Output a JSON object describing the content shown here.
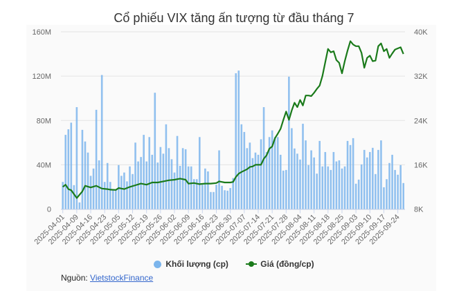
{
  "chart_data": {
    "type": "bar+line",
    "title": "Cổ phiếu VIX tăng ấn tượng từ đầu tháng 7",
    "x_tick_labels": [
      "2025-04-01",
      "2025-04-09",
      "2025-04-16",
      "2025-04-23",
      "2025-05-05",
      "2025-05-12",
      "2025-05-19",
      "2025-05-26",
      "2025-06-02",
      "2025-06-09",
      "2025-06-16",
      "2025-06-23",
      "2025-06-30",
      "2025-07-07",
      "2025-07-14",
      "2025-07-21",
      "2025-07-28",
      "2025-08-04",
      "2025-08-11",
      "2025-08-18",
      "2025-08-25",
      "2025-09-03",
      "2025-09-10",
      "2025-09-17",
      "2025-09-24"
    ],
    "x_tick_every_n_sessions": 5,
    "left_axis": {
      "label": "Khối lượng (cp)",
      "ylim": [
        0,
        160
      ],
      "unit": "M",
      "ticks": [
        "0",
        "40M",
        "80M",
        "120M",
        "160M"
      ]
    },
    "right_axis": {
      "label": "Giá (đồng/cp)",
      "ylim": [
        8,
        40
      ],
      "unit": "K",
      "ticks": [
        "8K",
        "16K",
        "24K",
        "32K",
        "40K"
      ]
    },
    "series": [
      {
        "name": "Khối lượng (cp)",
        "type": "bar",
        "color": "#7cb5ec",
        "unit": "million shares",
        "values": [
          24.5,
          67,
          72,
          78,
          21.6,
          92,
          6,
          71.5,
          61,
          51,
          30,
          36.6,
          89.6,
          44,
          121,
          24.5,
          41.6,
          24.5,
          18,
          17,
          39.7,
          30,
          33,
          25,
          38.5,
          31.6,
          60,
          43,
          47,
          67,
          43,
          65,
          49,
          105,
          42,
          56,
          50,
          76.5,
          55,
          45,
          33,
          66,
          39,
          55,
          54,
          38.5,
          38.5,
          27,
          27,
          65,
          22,
          36.6,
          34,
          15.4,
          15.4,
          22,
          53,
          21,
          17,
          16.6,
          19,
          28,
          122.6,
          125,
          76.5,
          69.6,
          55,
          60,
          46,
          51,
          49,
          63,
          92,
          51.5,
          65,
          71,
          65,
          65,
          49,
          34.7,
          35.3,
          119.5,
          73,
          54.7,
          50,
          44.7,
          77,
          62,
          39.7,
          53,
          46.6,
          32,
          61.5,
          38.5,
          51.5,
          38.5,
          35.3,
          51.5,
          43,
          44,
          36.6,
          38.5,
          61.5,
          57.8,
          64,
          22.9,
          26.6,
          40.3,
          53.4,
          46.6,
          51.5,
          55.3,
          31.6,
          53.4,
          62,
          19.7,
          27,
          41.6,
          49,
          35.3,
          31,
          39.7,
          23.5
        ]
      },
      {
        "name": "Giá (đồng/cp)",
        "type": "line",
        "color": "#1a7a1a",
        "unit": "thousand VND, [session_index, price]",
        "points": [
          [
            0,
            12.0
          ],
          [
            1,
            12.4
          ],
          [
            2,
            11.6
          ],
          [
            3,
            11.4
          ],
          [
            5,
            10.0
          ],
          [
            7,
            11.2
          ],
          [
            8,
            12.2
          ],
          [
            10,
            11.9
          ],
          [
            12,
            12.2
          ],
          [
            14,
            11.7
          ],
          [
            16,
            11.6
          ],
          [
            17,
            11.5
          ],
          [
            19,
            11.45
          ],
          [
            20,
            11.8
          ],
          [
            22,
            11.6
          ],
          [
            24,
            12.0
          ],
          [
            26,
            12.3
          ],
          [
            28,
            12.6
          ],
          [
            30,
            12.4
          ],
          [
            32,
            12.8
          ],
          [
            34,
            12.8
          ],
          [
            36,
            13.0
          ],
          [
            38,
            13.2
          ],
          [
            40,
            13.3
          ],
          [
            42,
            13.5
          ],
          [
            44,
            13.3
          ],
          [
            45,
            12.6
          ],
          [
            47,
            12.7
          ],
          [
            49,
            12.5
          ],
          [
            51,
            12.6
          ],
          [
            53,
            12.6
          ],
          [
            55,
            12.7
          ],
          [
            56,
            13.0
          ],
          [
            58,
            12.8
          ],
          [
            60,
            12.8
          ],
          [
            61,
            12.9
          ],
          [
            62,
            13.8
          ],
          [
            63,
            14.4
          ],
          [
            64,
            14.7
          ],
          [
            66,
            15.2
          ],
          [
            67,
            15.6
          ],
          [
            68,
            15.7
          ],
          [
            69,
            16.0
          ],
          [
            70,
            16.0
          ],
          [
            71,
            16.0
          ],
          [
            72,
            17.1
          ],
          [
            73,
            17.7
          ],
          [
            74,
            18.9
          ],
          [
            75,
            19.3
          ],
          [
            76,
            20.8
          ],
          [
            77,
            21.6
          ],
          [
            78,
            22.5
          ],
          [
            79,
            24.1
          ],
          [
            80,
            25.6
          ],
          [
            81,
            24.1
          ],
          [
            82,
            25.8
          ],
          [
            83,
            27.2
          ],
          [
            84,
            26.4
          ],
          [
            85,
            27.7
          ],
          [
            86,
            26.7
          ],
          [
            87,
            28.5
          ],
          [
            88,
            28.5
          ],
          [
            89,
            28.4
          ],
          [
            90,
            29.0
          ],
          [
            91,
            29.7
          ],
          [
            92,
            30.3
          ],
          [
            93,
            32.0
          ],
          [
            94,
            34.5
          ],
          [
            95,
            36.9
          ],
          [
            96,
            36.3
          ],
          [
            97,
            36.5
          ],
          [
            98,
            34.9
          ],
          [
            99,
            34.4
          ],
          [
            100,
            32.5
          ],
          [
            101,
            34.7
          ],
          [
            102,
            36.6
          ],
          [
            103,
            38.3
          ],
          [
            104,
            37.7
          ],
          [
            105,
            37.4
          ],
          [
            106,
            37.4
          ],
          [
            107,
            36.2
          ],
          [
            108,
            33.5
          ],
          [
            109,
            35.3
          ],
          [
            110,
            35.7
          ],
          [
            111,
            34.7
          ],
          [
            112,
            34.8
          ],
          [
            113,
            37.4
          ],
          [
            114,
            37.9
          ],
          [
            115,
            36.5
          ],
          [
            116,
            36.9
          ],
          [
            117,
            35.3
          ],
          [
            118,
            36.1
          ],
          [
            119,
            36.8
          ],
          [
            120,
            37.0
          ],
          [
            121,
            37.2
          ],
          [
            122,
            36.0
          ]
        ]
      }
    ],
    "grid": true,
    "legend_position": "bottom-center"
  },
  "legend": {
    "volume": "Khối lượng (cp)",
    "price": "Giá (đồng/cp)"
  },
  "source": {
    "label": "Nguồn: ",
    "link": "VietstockFinance"
  }
}
